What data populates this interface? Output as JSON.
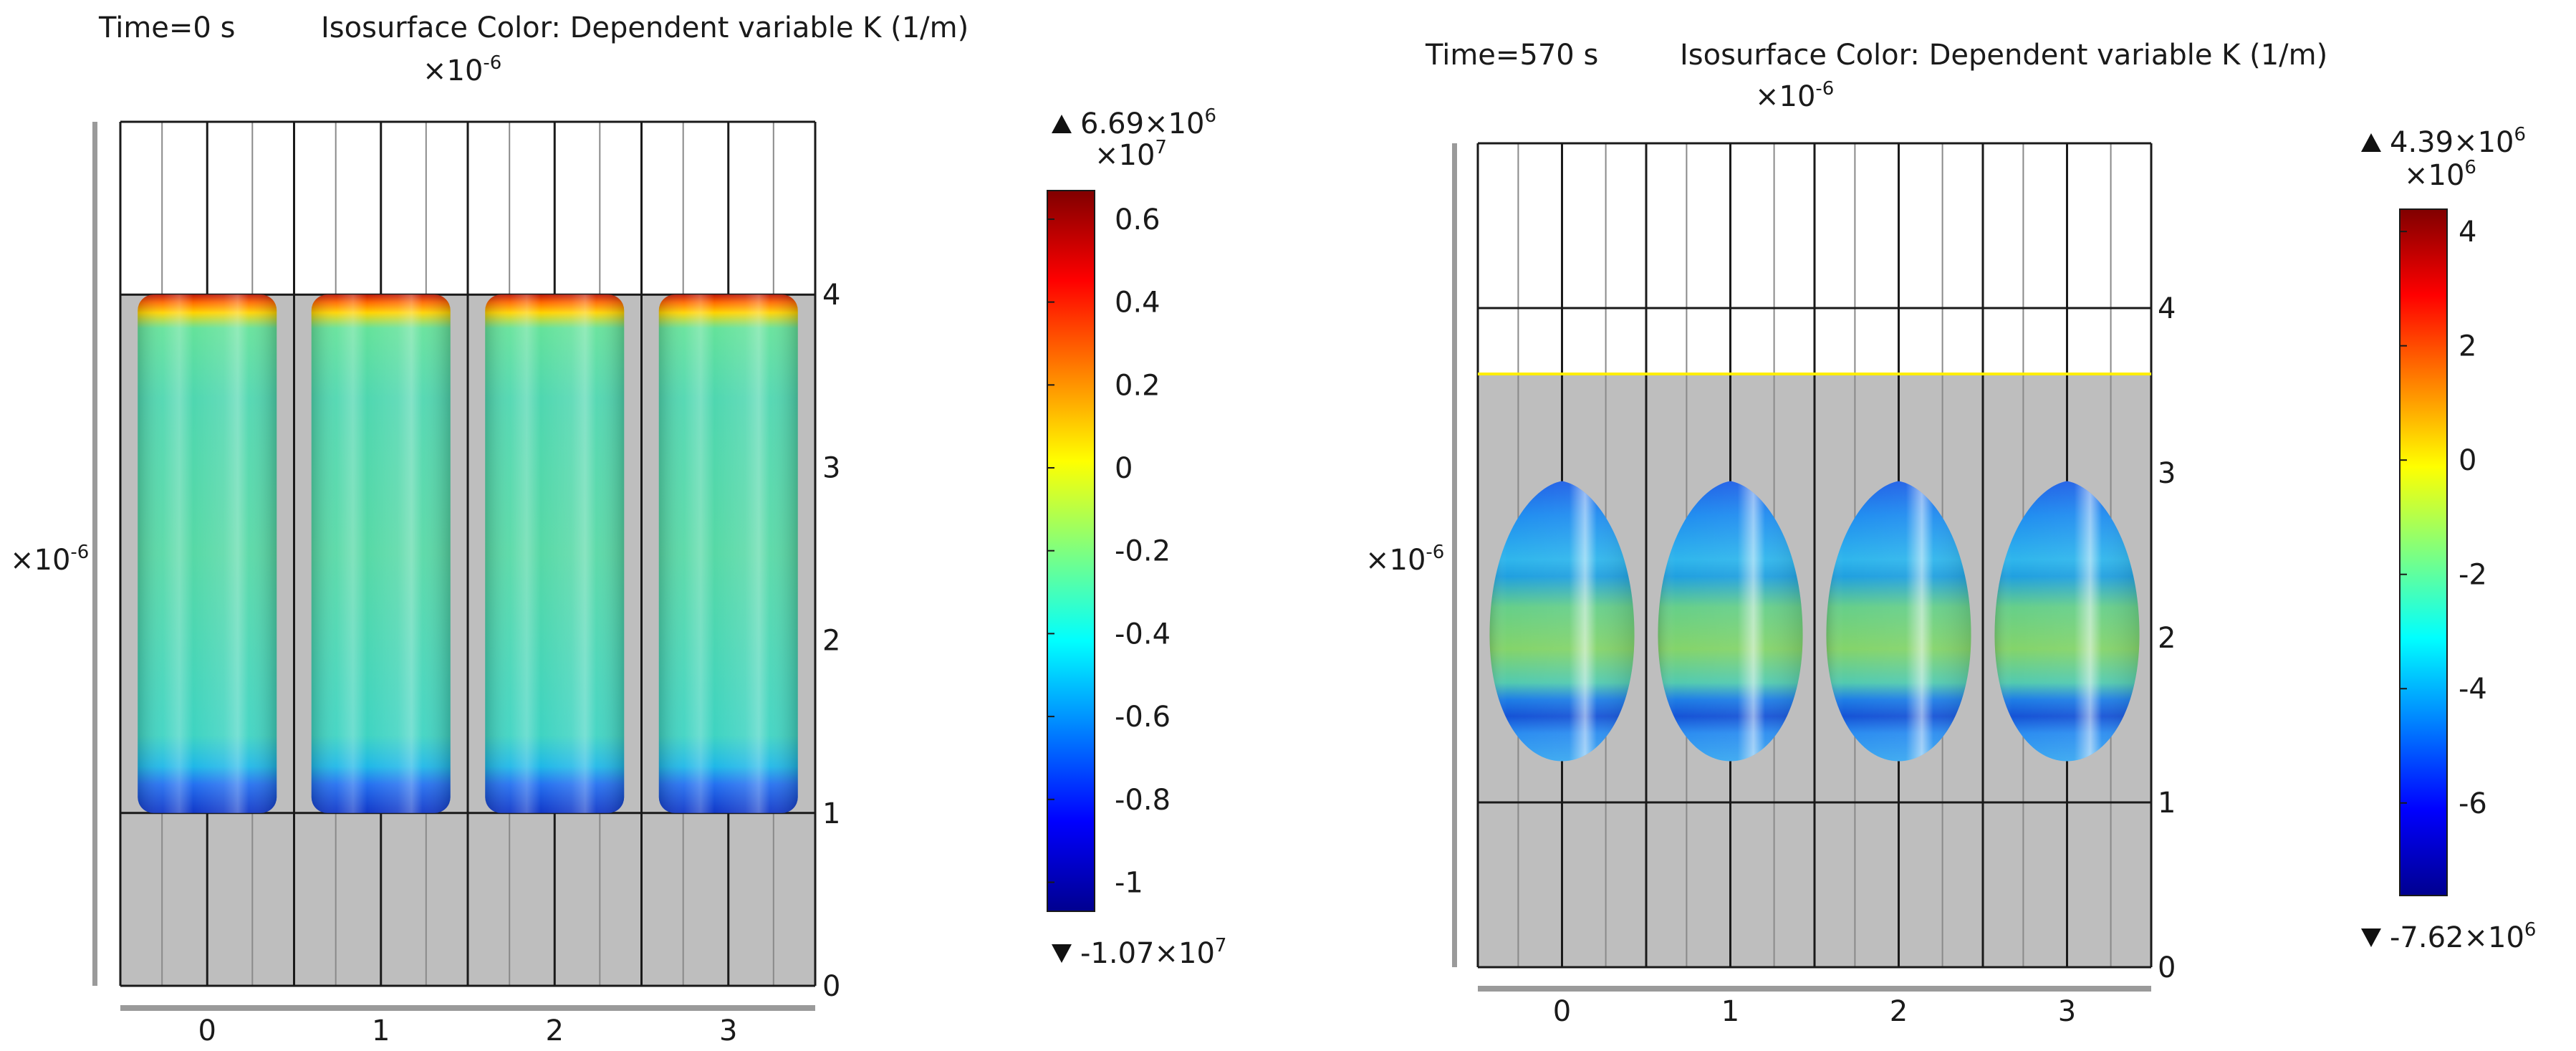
{
  "chart_data": [
    {
      "type": "heatmap",
      "time_label": "Time=0 s",
      "title": "Isosurface Color: Dependent variable K (1/m)",
      "x_scale_label": "×10",
      "x_scale_exp": "-6",
      "y_scale_label": "×10",
      "y_scale_exp": "-6",
      "x_ticks": [
        "0",
        "1",
        "2",
        "3"
      ],
      "y_ticks": [
        "0",
        "1",
        "2",
        "3",
        "4"
      ],
      "xlim": [
        -0.5,
        3.5
      ],
      "ylim": [
        0,
        5
      ],
      "bubble_shape": "cylinder",
      "bubble_centers_x": [
        0,
        1,
        2,
        3
      ],
      "bubble_y_range": [
        1.0,
        4.0
      ],
      "surface_level": 4.0,
      "colorbar": {
        "max_label": "6.69×10",
        "max_exp": "6",
        "min_label": "-1.07×10",
        "min_exp": "7",
        "scale_label": "×10",
        "scale_exp": "7",
        "range": [
          -1.07,
          0.669
        ],
        "ticks": [
          "0.6",
          "0.4",
          "0.2",
          "0",
          "-0.2",
          "-0.4",
          "-0.6",
          "-0.8",
          "-1"
        ],
        "tick_values": [
          0.6,
          0.4,
          0.2,
          0,
          -0.2,
          -0.4,
          -0.6,
          -0.8,
          -1
        ]
      }
    },
    {
      "type": "heatmap",
      "time_label": "Time=570 s",
      "title": "Isosurface Color: Dependent variable K (1/m)",
      "x_scale_label": "×10",
      "x_scale_exp": "-6",
      "y_scale_label": "×10",
      "y_scale_exp": "-6",
      "x_ticks": [
        "0",
        "1",
        "2",
        "3"
      ],
      "y_ticks": [
        "0",
        "1",
        "2",
        "3",
        "4"
      ],
      "xlim": [
        -0.5,
        3.5
      ],
      "ylim": [
        0,
        5
      ],
      "bubble_shape": "ellipsoid",
      "bubble_centers_x": [
        0,
        1,
        2,
        3
      ],
      "bubble_y_range": [
        1.25,
        2.95
      ],
      "surface_level": 3.6,
      "colorbar": {
        "max_label": "4.39×10",
        "max_exp": "6",
        "min_label": "-7.62×10",
        "min_exp": "6",
        "scale_label": "×10",
        "scale_exp": "6",
        "range": [
          -7.62,
          4.39
        ],
        "ticks": [
          "4",
          "2",
          "0",
          "-2",
          "-4",
          "-6"
        ],
        "tick_values": [
          4,
          2,
          0,
          -2,
          -4,
          -6
        ]
      }
    }
  ]
}
